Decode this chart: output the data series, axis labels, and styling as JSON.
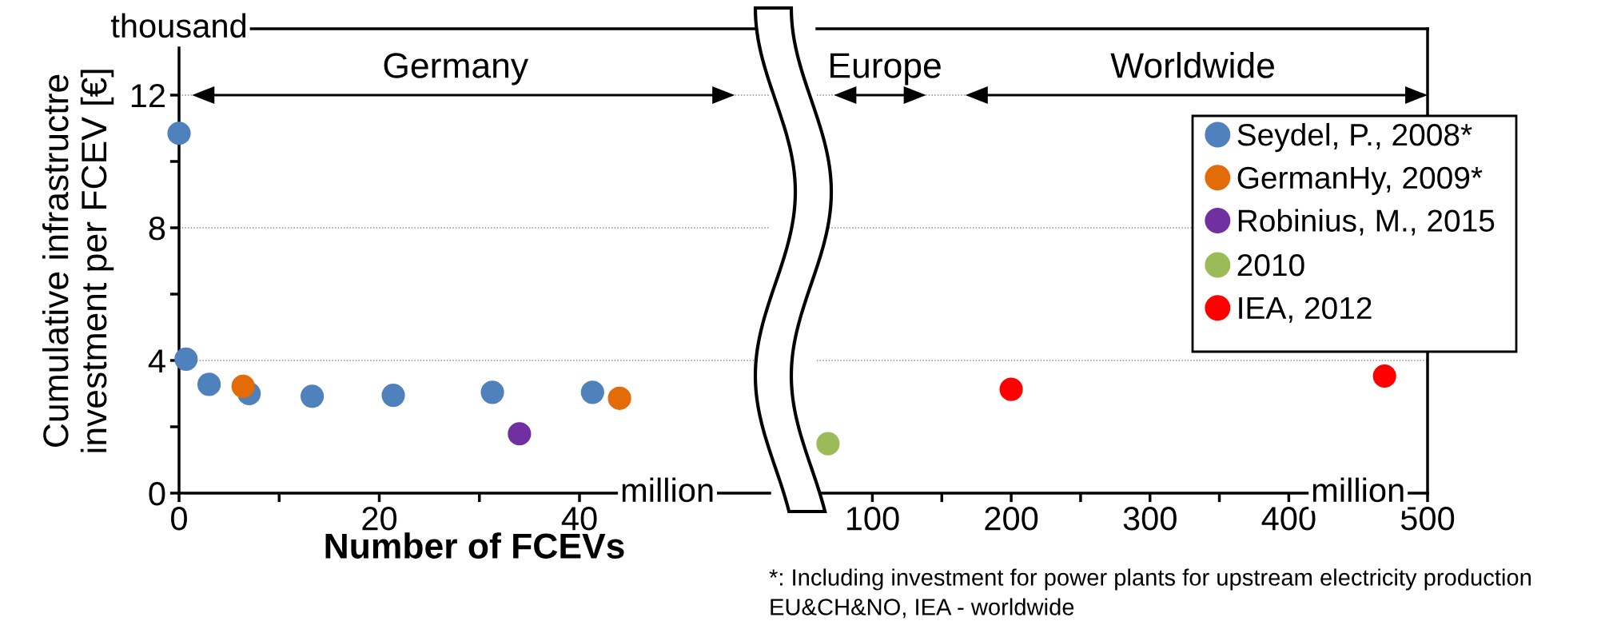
{
  "chart_data": [
    {
      "type": "scatter",
      "xlabel": "Number of FCEVs",
      "ylabel": "Cumulative infrastructre\ninvestment per FCEV [€]",
      "xlim": [
        0,
        59
      ],
      "ylim": [
        0,
        14
      ],
      "xticks": [
        0,
        {
          "value": 10,
          "label": null
        },
        20,
        {
          "value": 30,
          "label": null
        },
        40,
        {
          "value": 50,
          "label": null
        }
      ],
      "yticks": [
        0,
        {
          "value": 2,
          "label": null
        },
        4,
        {
          "value": 6,
          "label": null
        },
        8,
        {
          "value": 10,
          "label": null
        },
        12
      ],
      "grid": "y",
      "marker": "circle",
      "legend": "right",
      "annotations": [
        "thousand",
        "million",
        "Germany"
      ],
      "series": [
        {
          "name": "Seydel, P., 2008*",
          "color": "#4f81bd",
          "x": [
            0,
            0.7,
            3.0,
            7.0,
            13.3,
            21.4,
            31.3,
            41.3
          ],
          "values": [
            10.85,
            4.04,
            3.28,
            3.0,
            2.92,
            2.95,
            3.04,
            3.04
          ]
        },
        {
          "name": "GermanHy, 2009*",
          "color": "#e36c09",
          "x": [
            6.4,
            44.0
          ],
          "values": [
            3.22,
            2.86
          ]
        },
        {
          "name": "Robinius, M., 2015",
          "color": "#7030a0",
          "x": [
            34.0
          ],
          "values": [
            1.79
          ]
        }
      ]
    },
    {
      "type": "scatter",
      "xlim": [
        60,
        500
      ],
      "ylim": [
        0,
        14
      ],
      "tick_labels": "x",
      "xticks": [
        100,
        {
          "value": 150,
          "label": null
        },
        200,
        {
          "value": 250,
          "label": null
        },
        300,
        {
          "value": 350,
          "label": null
        },
        400,
        {
          "value": 450,
          "label": null
        },
        500
      ],
      "yticks": [
        0,
        4,
        8,
        12
      ],
      "grid": "y",
      "marker": "circle",
      "legend": "right",
      "annotations": [
        "million",
        "Europe",
        "Worldwide",
        "*: Including investment for power plants for upstream electricity production",
        "EU&CH&NO, IEA - worldwide"
      ],
      "series": [
        {
          "name": "2010",
          "color": "#9bbb59",
          "x": [
            68
          ],
          "values": [
            1.49
          ]
        },
        {
          "name": "IEA, 2012",
          "color": "#ff0000",
          "x": [
            200,
            469
          ],
          "values": [
            3.13,
            3.53
          ]
        }
      ]
    }
  ]
}
